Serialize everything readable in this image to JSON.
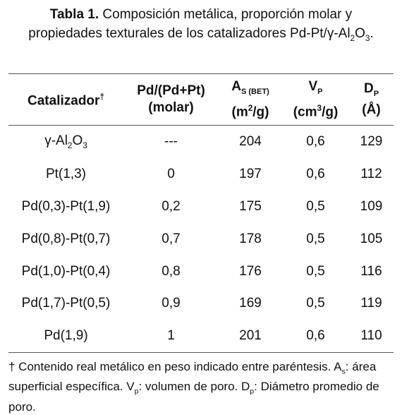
{
  "caption": {
    "label": "Tabla 1.",
    "text": [
      "Composición metálica, proporción molar y propiedades texturales de los catalizadores Pd-Pt/γ-Al",
      {
        "sub": "2"
      },
      "O",
      {
        "sub": "3"
      },
      "."
    ]
  },
  "table": {
    "header": [
      [
        [
          "Catalizador",
          {
            "sup": "†"
          }
        ]
      ],
      [
        "Pd/(Pd+Pt)",
        "(molar)"
      ],
      [
        [
          "A",
          {
            "sub": "S (BET)"
          }
        ],
        [
          "(m",
          {
            "sup": "2"
          },
          "/g)"
        ]
      ],
      [
        [
          "V",
          {
            "sub": "P"
          }
        ],
        [
          "(cm",
          {
            "sup": "3"
          },
          "/g)"
        ]
      ],
      [
        [
          "D",
          {
            "sub": "P"
          }
        ],
        "(Å)"
      ]
    ],
    "rows": [
      [
        [
          "γ-Al",
          {
            "sub": "2"
          },
          "O",
          {
            "sub": "3"
          }
        ],
        "---",
        "204",
        "0,6",
        "129"
      ],
      [
        "Pt(1,3)",
        "0",
        "197",
        "0,6",
        "112"
      ],
      [
        "Pd(0,3)-Pt(1,9)",
        "0,2",
        "175",
        "0,5",
        "109"
      ],
      [
        "Pd(0,8)-Pt(0,7)",
        "0,7",
        "178",
        "0,5",
        "105"
      ],
      [
        "Pd(1,0)-Pt(0,4)",
        "0,8",
        "176",
        "0,5",
        "116"
      ],
      [
        "Pd(1,7)-Pt(0,5)",
        "0,9",
        "169",
        "0,5",
        "119"
      ],
      [
        "Pd(1,9)",
        "1",
        "201",
        "0,6",
        "110"
      ]
    ]
  },
  "footnote": [
    "† Contenido real metálico en peso indicado entre paréntesis. A",
    {
      "sub": "s"
    },
    ": área superficial específica. V",
    {
      "sub": "p"
    },
    ": volumen de poro. D",
    {
      "sub": "p"
    },
    ": Diámetro promedio de poro."
  ]
}
